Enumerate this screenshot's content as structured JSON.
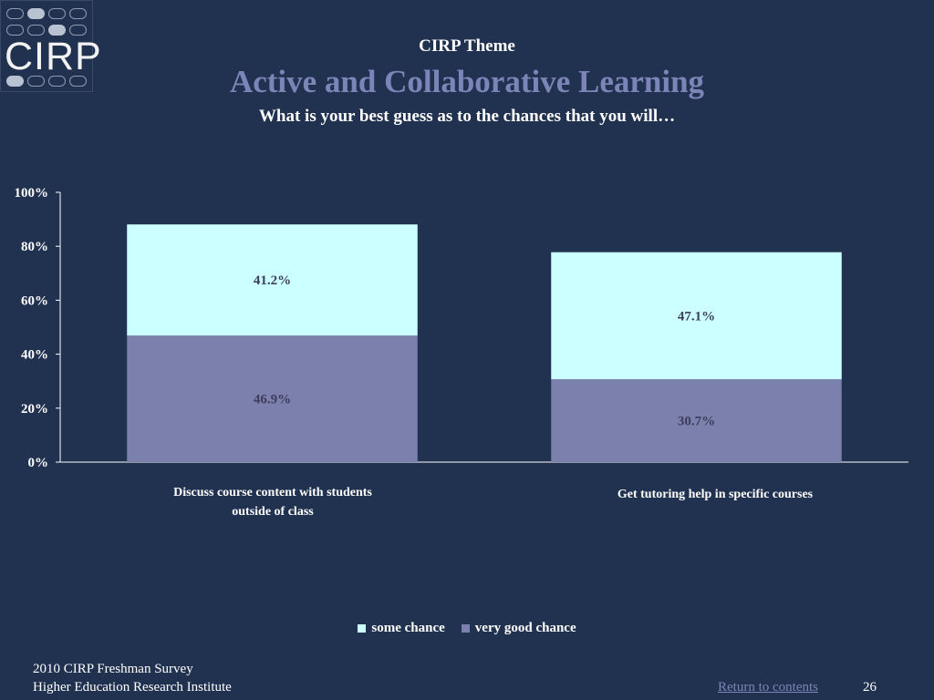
{
  "logo": {
    "text": "CIRP"
  },
  "header": {
    "theme": "CIRP Theme",
    "title": "Active and Collaborative Learning",
    "subtitle": "What is your best guess as to the chances that you will…"
  },
  "chart_data": {
    "type": "bar",
    "stacked": true,
    "categories": [
      "Discuss course content with students outside of class",
      "Get tutoring help in specific courses"
    ],
    "series": [
      {
        "name": "very good chance",
        "values": [
          46.9,
          30.7
        ],
        "labels": [
          "46.9%",
          "30.7%"
        ],
        "color": "#7b80ad"
      },
      {
        "name": "some chance",
        "values": [
          41.2,
          47.1
        ],
        "labels": [
          "41.2%",
          "47.1%"
        ],
        "color": "#ccffff"
      }
    ],
    "ylim": [
      0,
      100
    ],
    "yticks": [
      "0%",
      "20%",
      "40%",
      "60%",
      "80%",
      "100%"
    ],
    "grid": false,
    "legend": [
      "some chance",
      "very good chance"
    ],
    "legend_position": "bottom",
    "data_label_color": "#3d3d5c"
  },
  "category_lines": [
    [
      "Discuss course content with students",
      "outside of class"
    ],
    [
      "Get tutoring help in specific courses"
    ]
  ],
  "footer": {
    "survey": "2010 CIRP Freshman Survey",
    "institute": "Higher Education Research Institute",
    "return_link": "Return to contents",
    "page_number": "26"
  }
}
